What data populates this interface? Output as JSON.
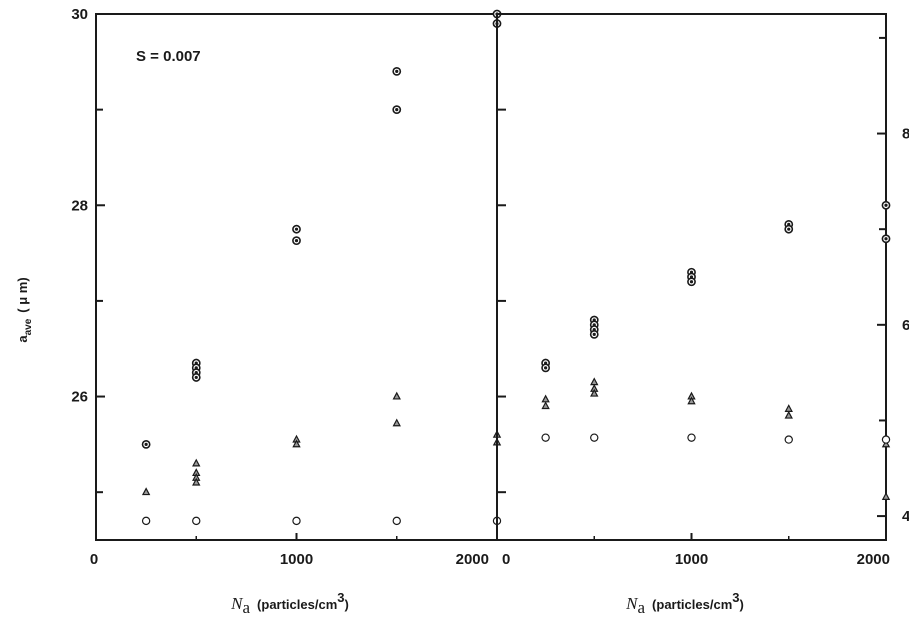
{
  "chart_data": [
    {
      "type": "scatter",
      "panel": "left",
      "annotation": "S = 0.007",
      "xlabel_symbol": "N",
      "xlabel_subscript": "a",
      "xlabel_units": "(particles/cm",
      "xlabel_units_exp": "3",
      "xlabel_units_close": ")",
      "ylabel_main": "a",
      "ylabel_subscript": "ave",
      "ylabel_units": "( μ m)",
      "xlim": [
        0,
        2000
      ],
      "ylim": [
        24.5,
        30
      ],
      "xticks": [
        0,
        1000,
        2000
      ],
      "xtick_labels": [
        "0",
        "1000",
        "2000"
      ],
      "yticks": [
        26,
        28,
        30
      ],
      "ytick_labels": [
        "26",
        "28",
        "30"
      ],
      "series": [
        {
          "marker": "filled-circle",
          "points": [
            [
              250,
              25.5
            ],
            [
              500,
              26.35
            ],
            [
              500,
              26.3
            ],
            [
              500,
              26.25
            ],
            [
              500,
              26.2
            ],
            [
              1000,
              27.75
            ],
            [
              1000,
              27.63
            ],
            [
              1500,
              29.4
            ],
            [
              1500,
              29.0
            ],
            [
              2000,
              30.0
            ],
            [
              2000,
              29.9
            ]
          ]
        },
        {
          "marker": "triangle",
          "points": [
            [
              250,
              25.0
            ],
            [
              500,
              25.3
            ],
            [
              500,
              25.2
            ],
            [
              500,
              25.15
            ],
            [
              500,
              25.1
            ],
            [
              1000,
              25.55
            ],
            [
              1000,
              25.5
            ],
            [
              1500,
              26.0
            ],
            [
              1500,
              25.72
            ],
            [
              2000,
              25.6
            ],
            [
              2000,
              25.52
            ]
          ]
        },
        {
          "marker": "open-circle",
          "points": [
            [
              250,
              24.7
            ],
            [
              500,
              24.7
            ],
            [
              1000,
              24.7
            ],
            [
              1500,
              24.7
            ],
            [
              2000,
              24.7
            ]
          ]
        }
      ]
    },
    {
      "type": "scatter",
      "panel": "right",
      "xlabel_symbol": "N",
      "xlabel_subscript": "a",
      "xlabel_units": "(particles/cm",
      "xlabel_units_exp": "3",
      "xlabel_units_close": ")",
      "xlim": [
        0,
        2000
      ],
      "ylim": [
        3.75,
        9.25
      ],
      "xticks": [
        0,
        1000,
        2000
      ],
      "xtick_labels": [
        "0",
        "1000",
        "2000"
      ],
      "yticks": [
        4,
        6,
        8
      ],
      "ytick_labels": [
        "4",
        "6",
        "8"
      ],
      "series": [
        {
          "marker": "filled-circle",
          "points": [
            [
              250,
              5.6
            ],
            [
              250,
              5.55
            ],
            [
              500,
              6.05
            ],
            [
              500,
              6.0
            ],
            [
              500,
              5.95
            ],
            [
              500,
              5.9
            ],
            [
              1000,
              6.55
            ],
            [
              1000,
              6.5
            ],
            [
              1000,
              6.45
            ],
            [
              1500,
              7.05
            ],
            [
              1500,
              7.0
            ],
            [
              2000,
              7.25
            ],
            [
              2000,
              6.9
            ]
          ]
        },
        {
          "marker": "triangle",
          "points": [
            [
              250,
              5.22
            ],
            [
              250,
              5.15
            ],
            [
              500,
              5.4
            ],
            [
              500,
              5.33
            ],
            [
              500,
              5.28
            ],
            [
              1000,
              5.25
            ],
            [
              1000,
              5.2
            ],
            [
              1500,
              5.12
            ],
            [
              1500,
              5.05
            ],
            [
              2000,
              4.75
            ],
            [
              2000,
              4.2
            ]
          ]
        },
        {
          "marker": "open-circle",
          "points": [
            [
              250,
              4.82
            ],
            [
              500,
              4.82
            ],
            [
              1000,
              4.82
            ],
            [
              1500,
              4.8
            ],
            [
              2000,
              4.8
            ]
          ]
        }
      ]
    }
  ]
}
